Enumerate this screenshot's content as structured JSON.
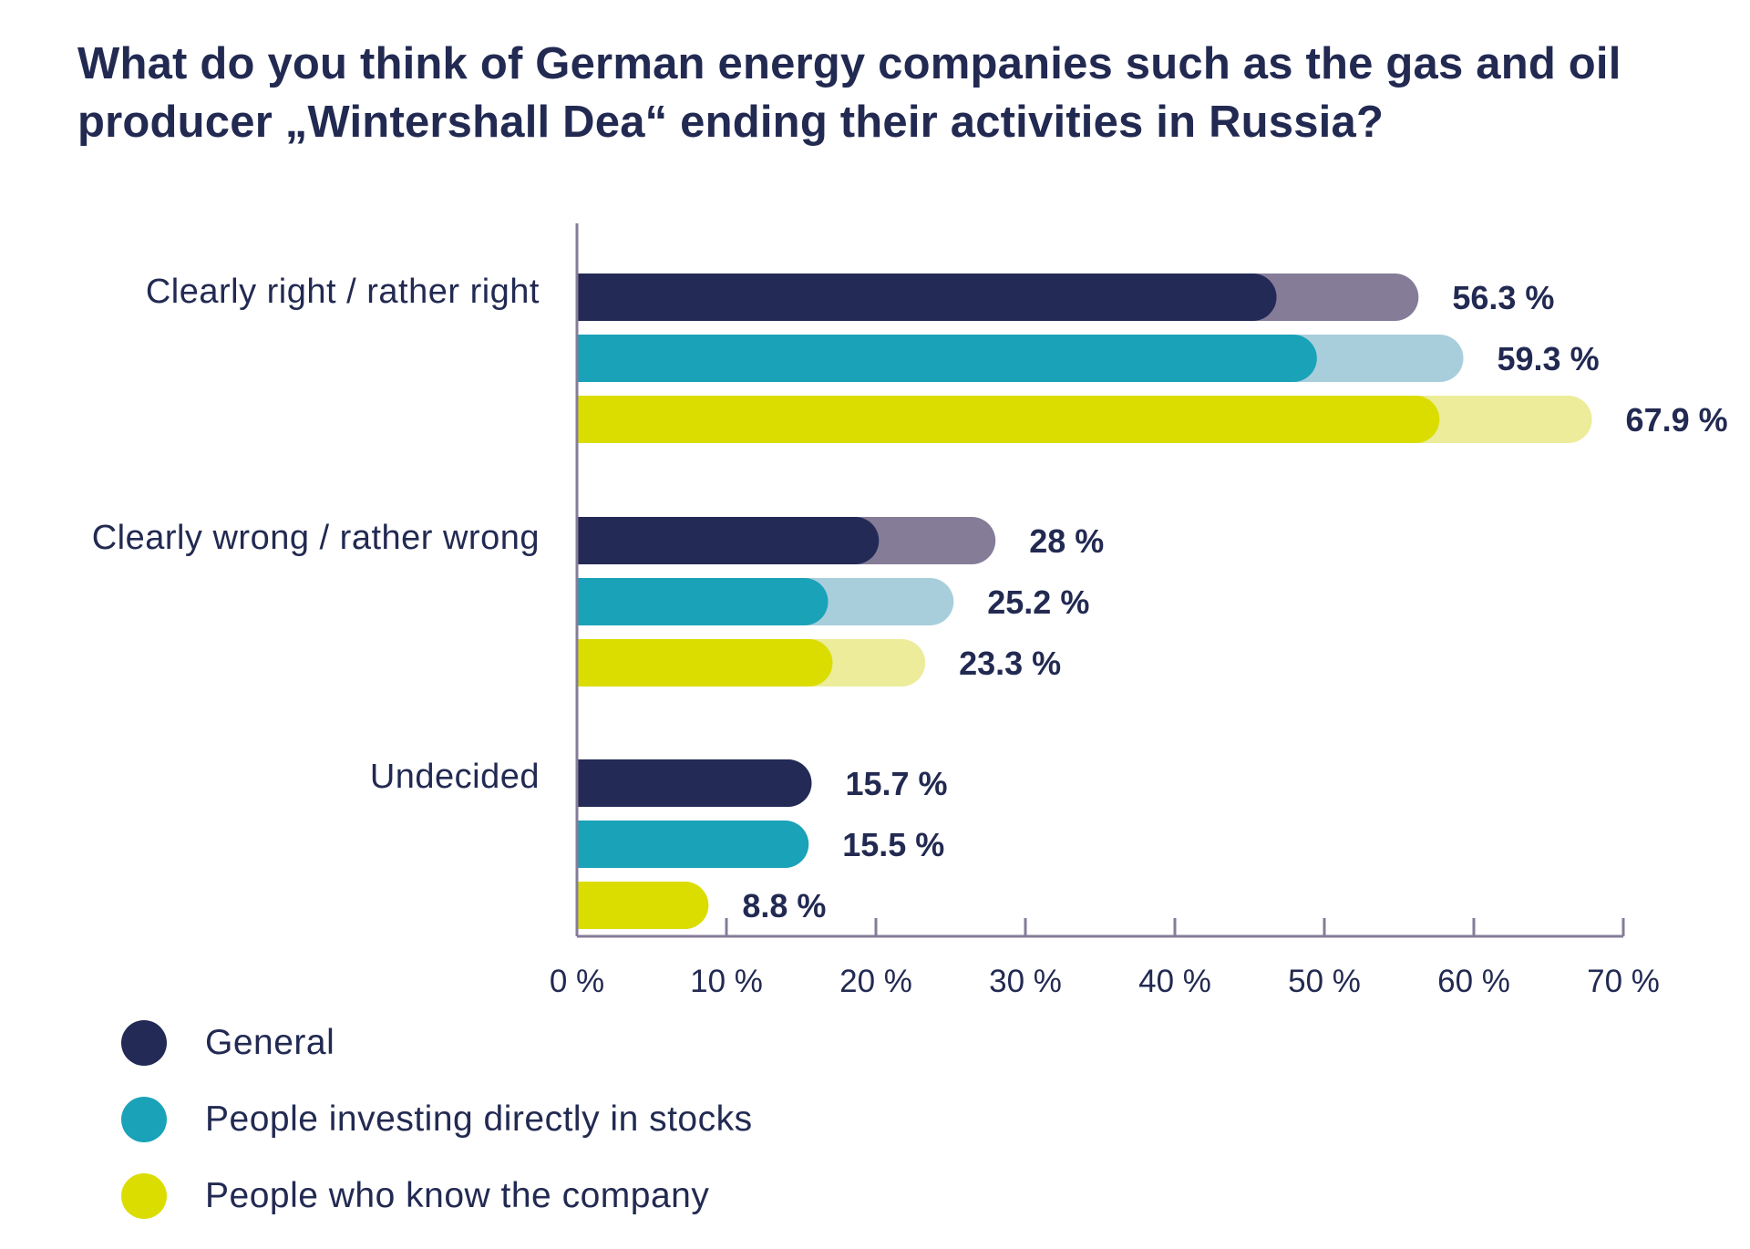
{
  "title": "What do you think of German energy companies such as the gas and oil producer „Wintershall Dea“ ending their activities in Russia?",
  "chart_data": {
    "type": "bar",
    "orientation": "horizontal",
    "categories": [
      "Clearly right / rather right",
      "Clearly wrong / rather wrong",
      "Undecided"
    ],
    "series": [
      {
        "name": "General",
        "values": [
          56.3,
          28,
          15.7
        ],
        "labels": [
          "56.3 %",
          "28 %",
          "15.7 %"
        ],
        "split_values": [
          46.8,
          20.2,
          15.7
        ],
        "color": "#232a56",
        "light_color": "#857c98"
      },
      {
        "name": "People investing directly in stocks",
        "values": [
          59.3,
          25.2,
          15.5
        ],
        "labels": [
          "59.3 %",
          "25.2 %",
          "15.5 %"
        ],
        "split_values": [
          49.5,
          16.8,
          15.5
        ],
        "color": "#1aa2b8",
        "light_color": "#a8cedc"
      },
      {
        "name": "People who know the company",
        "values": [
          67.9,
          23.3,
          8.8
        ],
        "labels": [
          "67.9 %",
          "23.3 %",
          "8.8 %"
        ],
        "split_values": [
          57.7,
          17.1,
          8.8
        ],
        "color": "#dbdd00",
        "light_color": "#ecec9a"
      }
    ],
    "xlim": [
      0,
      70
    ],
    "xticks": [
      0,
      10,
      20,
      30,
      40,
      50,
      60,
      70
    ],
    "xtick_labels": [
      "0 %",
      "10 %",
      "20 %",
      "30 %",
      "40 %",
      "50 %",
      "60 %",
      "70 %"
    ],
    "xlabel": "",
    "ylabel": "",
    "grid": false,
    "legend_position": "bottom-left"
  },
  "legend": {
    "items": [
      {
        "label": "General",
        "color": "#232a56"
      },
      {
        "label": "People investing directly in stocks",
        "color": "#1aa2b8"
      },
      {
        "label": "People who know the company",
        "color": "#dbdd00"
      }
    ]
  }
}
